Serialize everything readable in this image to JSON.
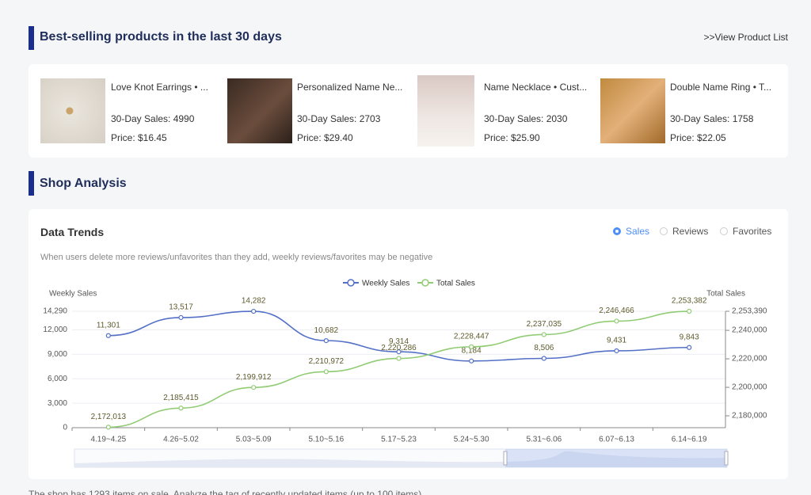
{
  "header": {
    "title": "Best-selling products in the last 30 days",
    "link": ">>View Product List"
  },
  "products": [
    {
      "name": "Love Knot Earrings • ...",
      "sales": "30-Day Sales: 4990",
      "price": "Price: $16.45"
    },
    {
      "name": "Personalized Name Ne...",
      "sales": "30-Day Sales: 2703",
      "price": "Price: $29.40"
    },
    {
      "name": "Name Necklace • Cust...",
      "sales": "30-Day Sales: 2030",
      "price": "Price: $25.90"
    },
    {
      "name": "Double Name Ring • T...",
      "sales": "30-Day Sales: 1758",
      "price": "Price: $22.05"
    }
  ],
  "analysis": {
    "title": "Shop Analysis",
    "card_title": "Data Trends",
    "options": [
      "Sales",
      "Reviews",
      "Favorites"
    ],
    "note": "When users delete more reviews/unfavorites than they add, weekly reviews/favorites may be negative"
  },
  "footer": {
    "text": "The shop has 1293 items on sale. Analyze the tag of recently updated items (up to 100 items)."
  },
  "chart_data": {
    "type": "line",
    "y_label": "Weekly Sales",
    "y2_label": "Total Sales",
    "categories": [
      "4.19~4.25",
      "4.26~5.02",
      "5.03~5.09",
      "5.10~5.16",
      "5.17~5.23",
      "5.24~5.30",
      "5.31~6.06",
      "6.07~6.13",
      "6.14~6.19"
    ],
    "series": [
      {
        "name": "Weekly Sales",
        "color": "#5470c6",
        "values": [
          11301,
          13517,
          14282,
          10682,
          9314,
          8184,
          8506,
          9431,
          9843
        ],
        "value_labels": [
          "11,301",
          "13,517",
          "14,282",
          "10,682",
          "9,314",
          "8,184",
          "8,506",
          "9,431",
          "9,843"
        ]
      },
      {
        "name": "Total Sales",
        "color": "#91cc75",
        "axis": "y2",
        "values": [
          2172013,
          2185415,
          2199912,
          2210972,
          2220286,
          2228447,
          2237035,
          2246466,
          2253382
        ],
        "value_labels": [
          "2,172,013",
          "2,185,415",
          "2,199,912",
          "2,210,972",
          "2,220,286",
          "2,228,447",
          "2,237,035",
          "2,246,466",
          "2,253,382"
        ]
      }
    ],
    "ylim": [
      0,
      14290
    ],
    "yticks": [
      0,
      {
        "value": 3000,
        "label": "3,000"
      },
      {
        "value": 6000,
        "label": "6,000"
      },
      {
        "value": 9000,
        "label": "9,000"
      },
      {
        "value": 12000,
        "label": "12,000"
      },
      {
        "value": 14290,
        "label": "14,290"
      }
    ],
    "y2lim": [
      2171667,
      2253390
    ],
    "y2ticks": [
      {
        "value": 2180000,
        "label": "2,180,000"
      },
      {
        "value": 2200000,
        "label": "2,200,000"
      },
      {
        "value": 2220000,
        "label": "2,220,000"
      },
      {
        "value": 2240000,
        "label": "2,240,000"
      },
      {
        "value": 2253390,
        "label": "2,253,390"
      }
    ],
    "grid": true
  }
}
